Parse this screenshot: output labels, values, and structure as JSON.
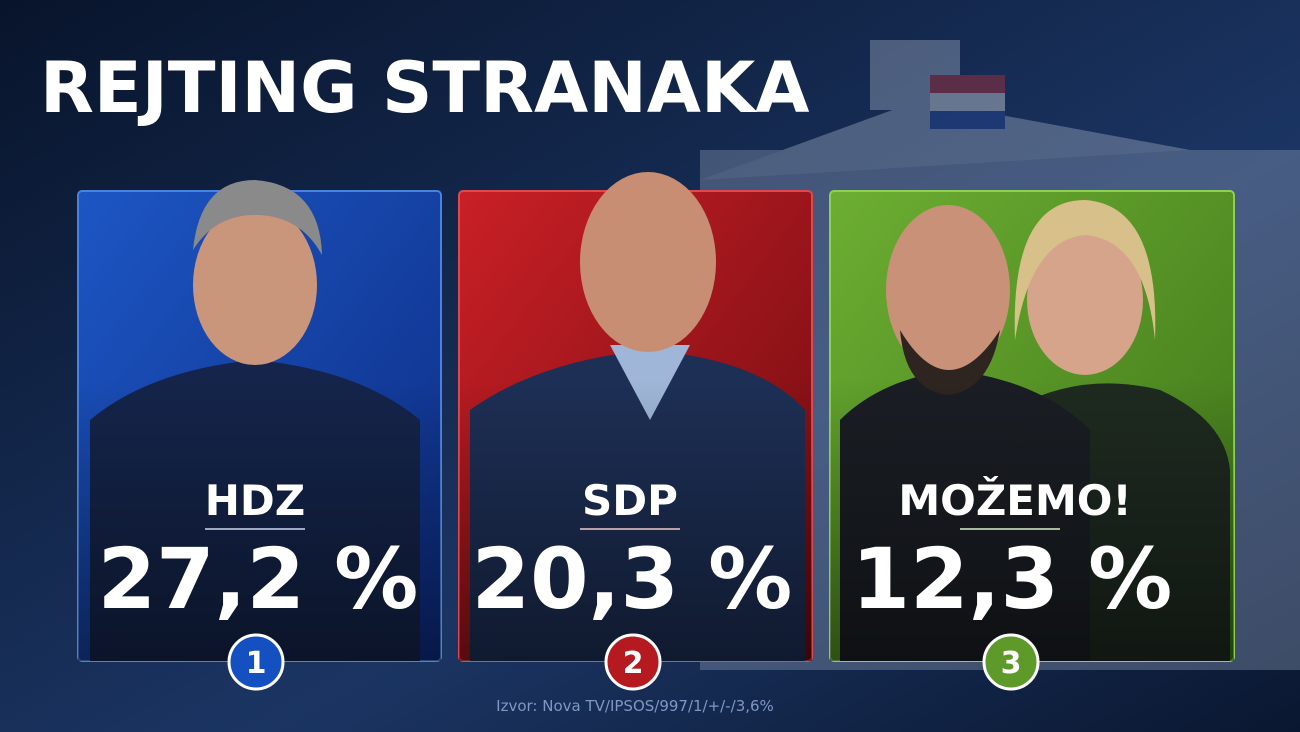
{
  "title": "REJTING STRANAKA",
  "cards": [
    {
      "party": "HDZ",
      "value": "27,2 %",
      "rank": "1"
    },
    {
      "party": "SDP",
      "value": "20,3 %",
      "rank": "2"
    },
    {
      "party": "MOŽEMO!",
      "value": "12,3 %",
      "rank": "3"
    }
  ],
  "source": "Izvor: Nova TV/IPSOS/997/1/+/-/3,6%"
}
